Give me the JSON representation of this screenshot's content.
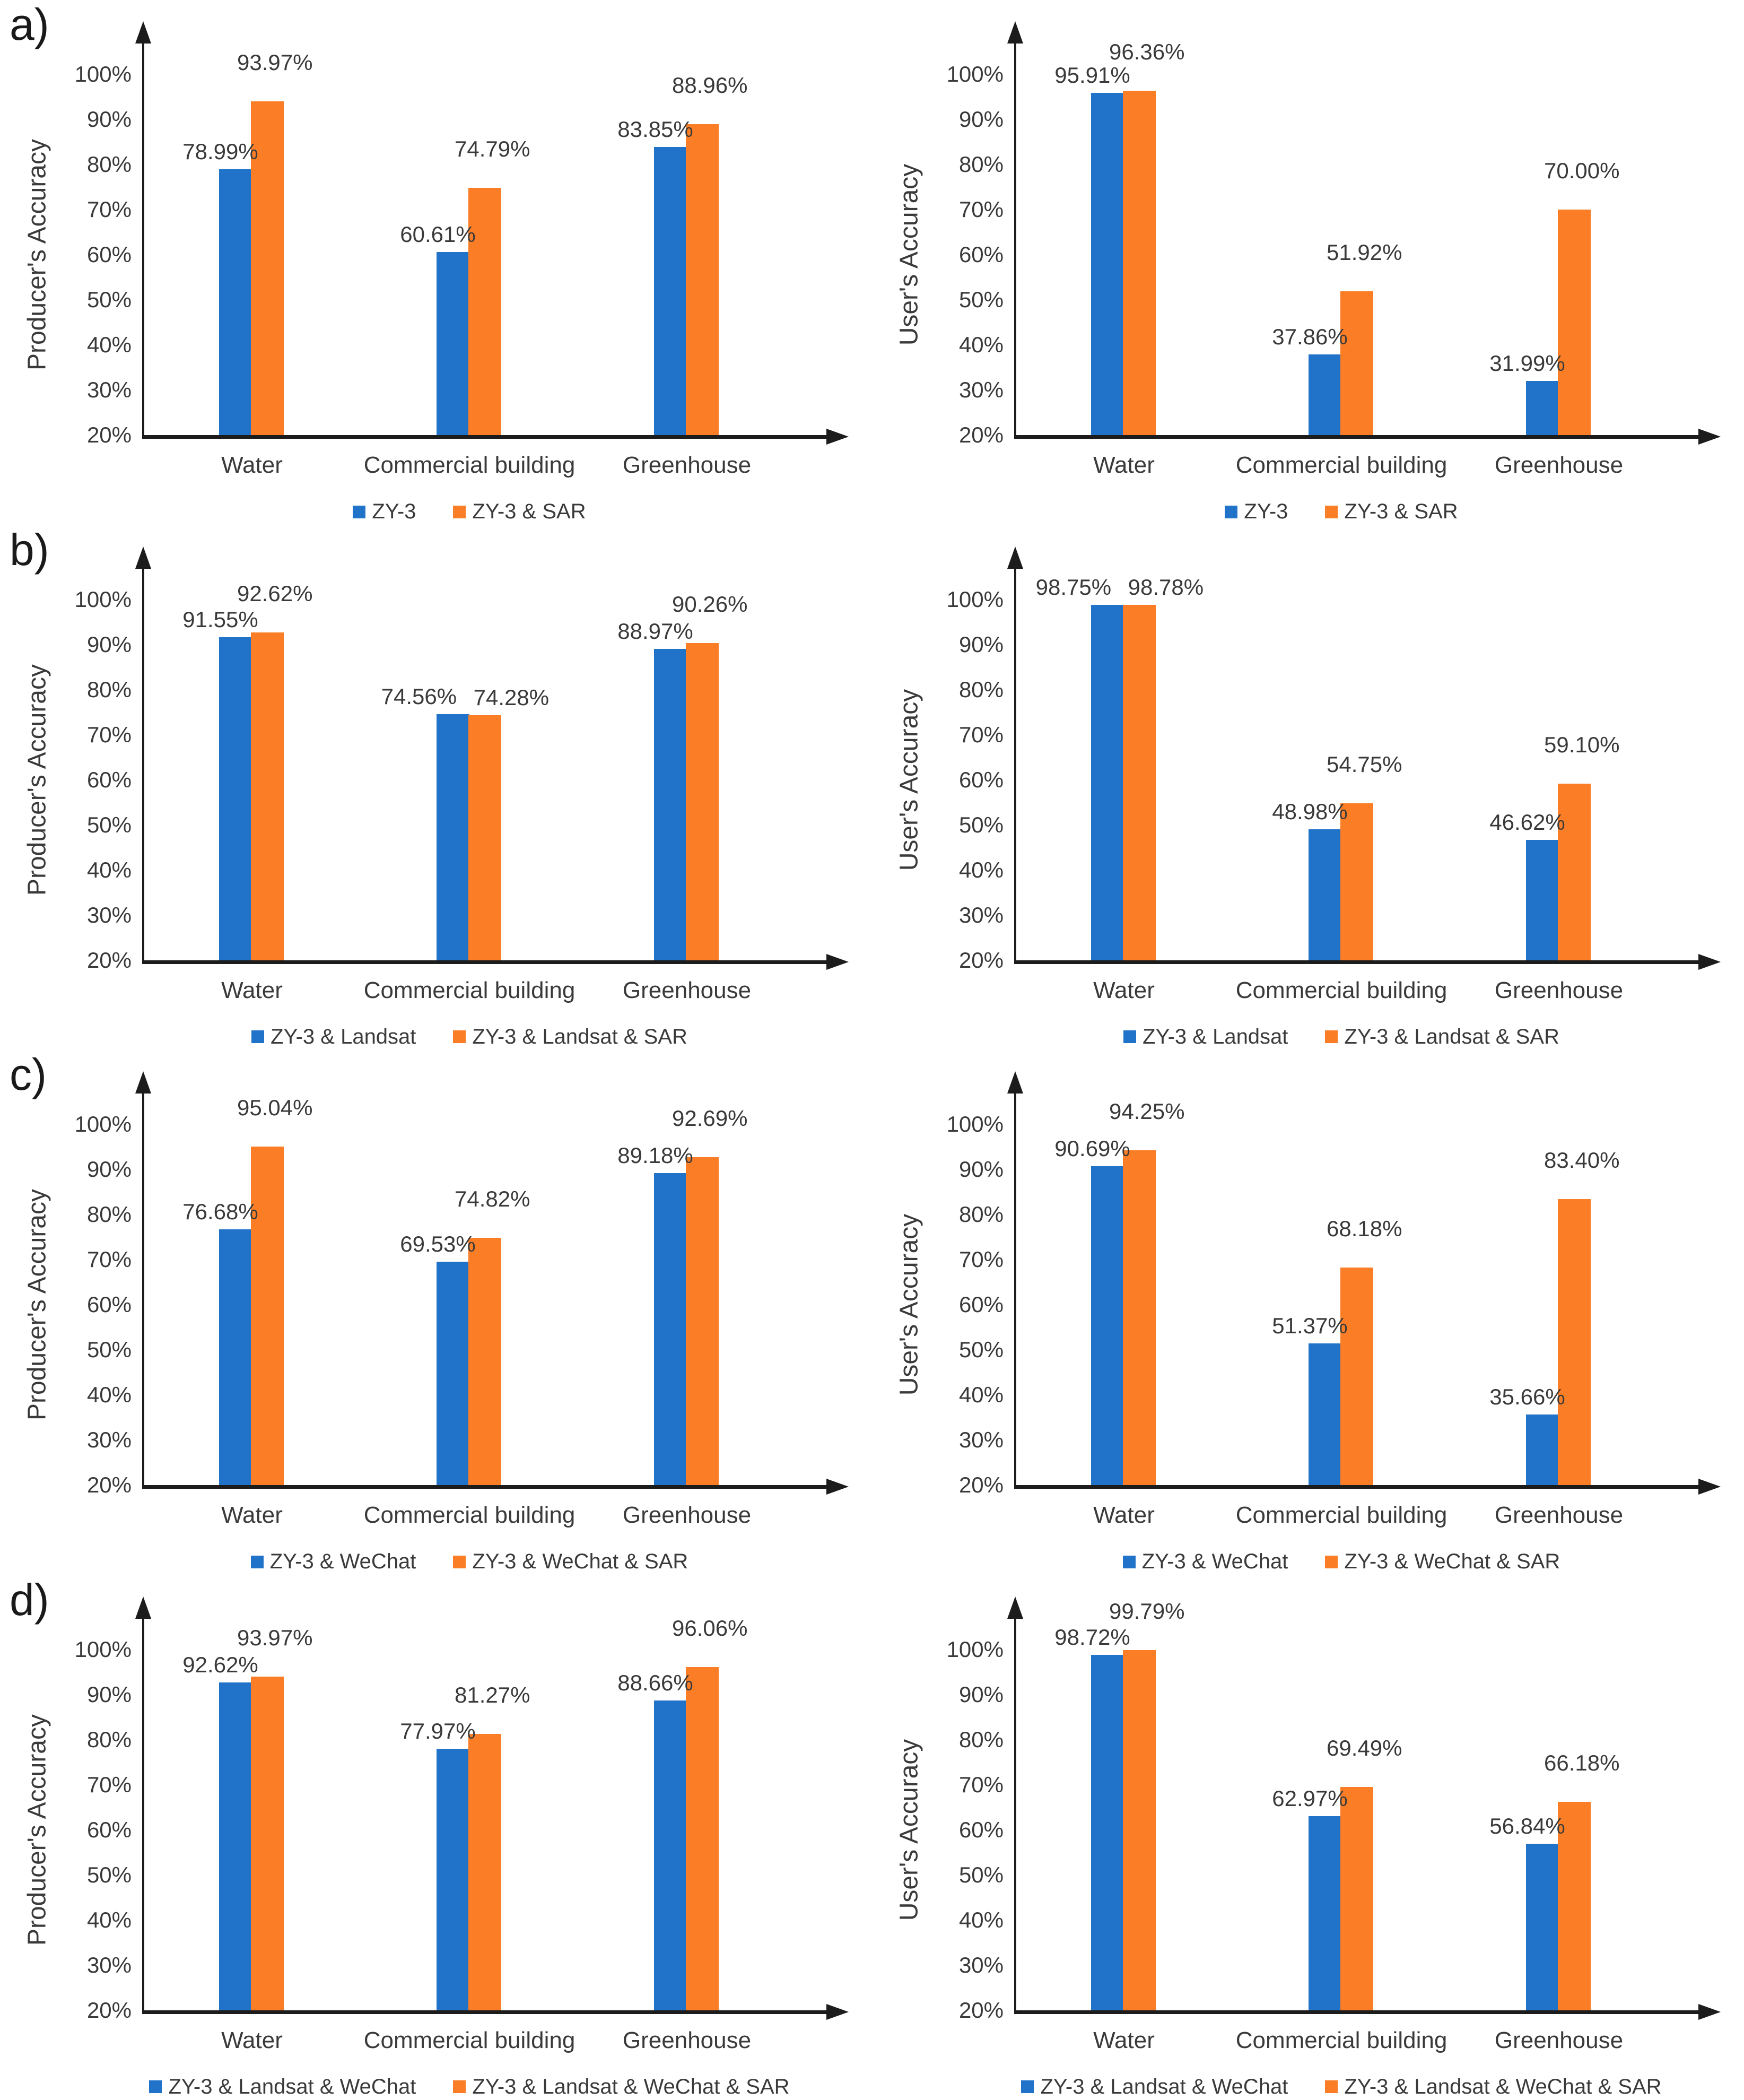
{
  "figure": {
    "panel_letters": [
      "a)",
      "b)",
      "c)",
      "d)"
    ],
    "categories": [
      "Water",
      "Commercial building",
      "Greenhouse"
    ],
    "yticks": [
      "100%",
      "90%",
      "80%",
      "70%",
      "60%",
      "50%",
      "40%",
      "30%",
      "20%"
    ],
    "ylim": [
      20,
      100
    ],
    "colors": {
      "series1": "#2173C9",
      "series2": "#FB7E26",
      "axis": "#1C1C1C",
      "text": "#3A3A3A"
    }
  },
  "chart_data": [
    {
      "panel": "a",
      "position": "left",
      "type": "bar",
      "title": "",
      "ylabel": "Producer's Accuracy",
      "xlabel": "",
      "categories": [
        "Water",
        "Commercial building",
        "Greenhouse"
      ],
      "ylim": [
        20,
        100
      ],
      "grid": false,
      "legend_position": "bottom",
      "series": [
        {
          "name": "ZY-3",
          "color": "#2173C9",
          "values": [
            78.99,
            60.61,
            83.85
          ],
          "labels": [
            "78.99%",
            "60.61%",
            "83.85%"
          ]
        },
        {
          "name": "ZY-3 & SAR",
          "color": "#FB7E26",
          "values": [
            93.97,
            74.79,
            88.96
          ],
          "labels": [
            "93.97%",
            "74.79%",
            "88.96%"
          ]
        }
      ]
    },
    {
      "panel": "a",
      "position": "right",
      "type": "bar",
      "title": "",
      "ylabel": "User's Accuracy",
      "xlabel": "",
      "categories": [
        "Water",
        "Commercial building",
        "Greenhouse"
      ],
      "ylim": [
        20,
        100
      ],
      "grid": false,
      "legend_position": "bottom",
      "series": [
        {
          "name": "ZY-3",
          "color": "#2173C9",
          "values": [
            95.91,
            37.86,
            31.99
          ],
          "labels": [
            "95.91%",
            "37.86%",
            "31.99%"
          ]
        },
        {
          "name": "ZY-3 & SAR",
          "color": "#FB7E26",
          "values": [
            96.36,
            51.92,
            70.0
          ],
          "labels": [
            "96.36%",
            "51.92%",
            "70.00%"
          ]
        }
      ]
    },
    {
      "panel": "b",
      "position": "left",
      "type": "bar",
      "title": "",
      "ylabel": "Producer's Accuracy",
      "xlabel": "",
      "categories": [
        "Water",
        "Commercial building",
        "Greenhouse"
      ],
      "ylim": [
        20,
        100
      ],
      "grid": false,
      "legend_position": "bottom",
      "series": [
        {
          "name": "ZY-3 & Landsat",
          "color": "#2173C9",
          "values": [
            91.55,
            74.56,
            88.97
          ],
          "labels": [
            "91.55%",
            "74.56%",
            "88.97%"
          ]
        },
        {
          "name": "ZY-3 & Landsat & SAR",
          "color": "#FB7E26",
          "values": [
            92.62,
            74.28,
            90.26
          ],
          "labels": [
            "92.62%",
            "74.28%",
            "90.26%"
          ]
        }
      ]
    },
    {
      "panel": "b",
      "position": "right",
      "type": "bar",
      "title": "",
      "ylabel": "User's Accuracy",
      "xlabel": "",
      "categories": [
        "Water",
        "Commercial building",
        "Greenhouse"
      ],
      "ylim": [
        20,
        100
      ],
      "grid": false,
      "legend_position": "bottom",
      "series": [
        {
          "name": "ZY-3 & Landsat",
          "color": "#2173C9",
          "values": [
            98.75,
            48.98,
            46.62
          ],
          "labels": [
            "98.75%",
            "48.98%",
            "46.62%"
          ]
        },
        {
          "name": "ZY-3 & Landsat & SAR",
          "color": "#FB7E26",
          "values": [
            98.78,
            54.75,
            59.1
          ],
          "labels": [
            "98.78%",
            "54.75%",
            "59.10%"
          ]
        }
      ]
    },
    {
      "panel": "c",
      "position": "left",
      "type": "bar",
      "title": "",
      "ylabel": "Producer's Accuracy",
      "xlabel": "",
      "categories": [
        "Water",
        "Commercial building",
        "Greenhouse"
      ],
      "ylim": [
        20,
        100
      ],
      "grid": false,
      "legend_position": "bottom",
      "series": [
        {
          "name": "ZY-3 & WeChat",
          "color": "#2173C9",
          "values": [
            76.68,
            69.53,
            89.18
          ],
          "labels": [
            "76.68%",
            "69.53%",
            "89.18%"
          ]
        },
        {
          "name": "ZY-3 & WeChat & SAR",
          "color": "#FB7E26",
          "values": [
            95.04,
            74.82,
            92.69
          ],
          "labels": [
            "95.04%",
            "74.82%",
            "92.69%"
          ]
        }
      ]
    },
    {
      "panel": "c",
      "position": "right",
      "type": "bar",
      "title": "",
      "ylabel": "User's Accuracy",
      "xlabel": "",
      "categories": [
        "Water",
        "Commercial building",
        "Greenhouse"
      ],
      "ylim": [
        20,
        100
      ],
      "grid": false,
      "legend_position": "bottom",
      "series": [
        {
          "name": "ZY-3 & WeChat",
          "color": "#2173C9",
          "values": [
            90.69,
            51.37,
            35.66
          ],
          "labels": [
            "90.69%",
            "51.37%",
            "35.66%"
          ]
        },
        {
          "name": "ZY-3 & WeChat & SAR",
          "color": "#FB7E26",
          "values": [
            94.25,
            68.18,
            83.4
          ],
          "labels": [
            "94.25%",
            "68.18%",
            "83.40%"
          ]
        }
      ]
    },
    {
      "panel": "d",
      "position": "left",
      "type": "bar",
      "title": "",
      "ylabel": "Producer's Accuracy",
      "xlabel": "",
      "categories": [
        "Water",
        "Commercial building",
        "Greenhouse"
      ],
      "ylim": [
        20,
        100
      ],
      "grid": false,
      "legend_position": "bottom",
      "series": [
        {
          "name": "ZY-3 & Landsat & WeChat",
          "color": "#2173C9",
          "values": [
            92.62,
            77.97,
            88.66
          ],
          "labels": [
            "92.62%",
            "77.97%",
            "88.66%"
          ]
        },
        {
          "name": "ZY-3 & Landsat & WeChat & SAR",
          "color": "#FB7E26",
          "values": [
            93.97,
            81.27,
            96.06
          ],
          "labels": [
            "93.97%",
            "81.27%",
            "96.06%"
          ]
        }
      ]
    },
    {
      "panel": "d",
      "position": "right",
      "type": "bar",
      "title": "",
      "ylabel": "User's Accuracy",
      "xlabel": "",
      "categories": [
        "Water",
        "Commercial building",
        "Greenhouse"
      ],
      "ylim": [
        20,
        100
      ],
      "grid": false,
      "legend_position": "bottom",
      "series": [
        {
          "name": "ZY-3 & Landsat & WeChat",
          "color": "#2173C9",
          "values": [
            98.72,
            62.97,
            56.84
          ],
          "labels": [
            "98.72%",
            "62.97%",
            "56.84%"
          ]
        },
        {
          "name": "ZY-3 & Landsat & WeChat & SAR",
          "color": "#FB7E26",
          "values": [
            99.79,
            69.49,
            66.18
          ],
          "labels": [
            "99.79%",
            "69.49%",
            "66.18%"
          ]
        }
      ]
    }
  ]
}
